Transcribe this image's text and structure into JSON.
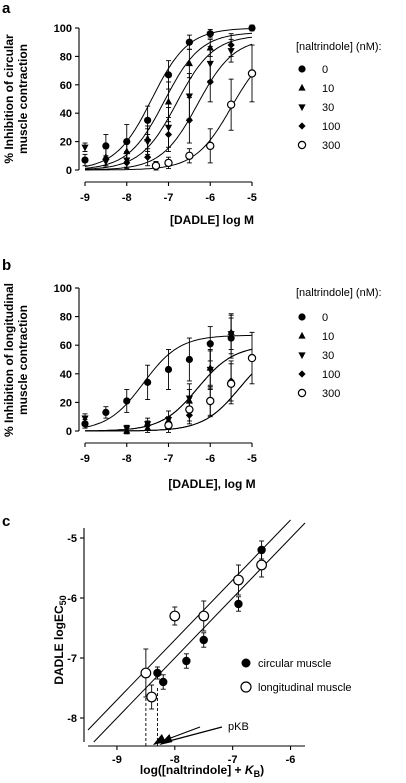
{
  "chart_data": [
    {
      "type": "scatter",
      "panel": "a",
      "xlabel": "[DADLE] log M",
      "ylabel": [
        "% Inhibition of circular",
        "muscle contraction"
      ],
      "xlim": [
        -9,
        -5
      ],
      "ylim": [
        0,
        100
      ],
      "xticks": [
        -9,
        -8,
        -7,
        -6,
        -5
      ],
      "yticks": [
        0,
        20,
        40,
        60,
        80,
        100
      ],
      "legend_title": "[naltrindole] (nM):",
      "legend_placement": "right",
      "series": [
        {
          "name": "0",
          "marker": "circle-filled",
          "x": [
            -9,
            -8.5,
            -8,
            -7.5,
            -7,
            -6.5,
            -6,
            -5
          ],
          "y": [
            7,
            17,
            20,
            35,
            67,
            90,
            96,
            100
          ],
          "err": [
            4,
            8,
            12,
            10,
            10,
            5,
            3,
            2
          ],
          "fit": {
            "logEC50": -7.4,
            "top": 100,
            "bottom": 0
          }
        },
        {
          "name": "10",
          "marker": "triangle-up",
          "x": [
            -8.5,
            -8,
            -7.5,
            -7,
            -6.5,
            -6
          ],
          "y": [
            9,
            13,
            22,
            48,
            75,
            86
          ],
          "err": [
            6,
            7,
            9,
            14,
            10,
            6
          ],
          "fit": {
            "logEC50": -7.1,
            "top": 97,
            "bottom": 0
          }
        },
        {
          "name": "30",
          "marker": "triangle-down",
          "x": [
            -9,
            -8.5,
            -8,
            -7.5,
            -7,
            -6.5,
            -6,
            -5.5
          ],
          "y": [
            16,
            6,
            7,
            20,
            30,
            52,
            75,
            84
          ],
          "err": [
            3,
            4,
            6,
            9,
            14,
            16,
            12,
            8
          ],
          "fit": {
            "logEC50": -6.8,
            "top": 95,
            "bottom": 0
          }
        },
        {
          "name": "100",
          "marker": "diamond",
          "x": [
            -8,
            -7.5,
            -7,
            -6.5,
            -6,
            -5.5
          ],
          "y": [
            5,
            9,
            25,
            35,
            62,
            88
          ],
          "err": [
            3,
            6,
            12,
            16,
            14,
            8
          ],
          "fit": {
            "logEC50": -6.3,
            "top": 93,
            "bottom": 0
          }
        },
        {
          "name": "300",
          "marker": "circle-open",
          "x": [
            -7.3,
            -7,
            -6.5,
            -6,
            -5.5,
            -5
          ],
          "y": [
            3,
            5,
            10,
            17,
            46,
            68
          ],
          "err": [
            3,
            4,
            5,
            12,
            18,
            20
          ],
          "fit": {
            "logEC50": -5.5,
            "top": 88,
            "bottom": 0
          }
        }
      ]
    },
    {
      "type": "scatter",
      "panel": "b",
      "xlabel": "[DADLE], log M",
      "ylabel": [
        "% Inhibition of longitudinal",
        "muscle contraction"
      ],
      "xlim": [
        -9,
        -5
      ],
      "ylim": [
        0,
        100
      ],
      "xticks": [
        -9,
        -8,
        -7,
        -6,
        -5
      ],
      "yticks": [
        0,
        20,
        40,
        60,
        80,
        100
      ],
      "legend_title": "[naltrindole] (nM):",
      "legend_placement": "right",
      "series": [
        {
          "name": "0",
          "marker": "circle-filled",
          "x": [
            -9,
            -8.5,
            -8,
            -7.5,
            -7,
            -6.5,
            -6,
            -5.5
          ],
          "y": [
            5,
            13,
            21,
            34,
            43,
            50,
            61,
            65
          ],
          "err": [
            3,
            4,
            8,
            12,
            14,
            15,
            12,
            14
          ],
          "fit": {
            "logEC50": -7.6,
            "top": 67,
            "bottom": 0
          }
        },
        {
          "name": "10",
          "marker": "triangle-up",
          "x": [
            -8,
            -7.5,
            -7,
            -6.5,
            -6,
            -5.5
          ],
          "y": [
            0,
            2,
            3,
            21,
            44,
            69
          ],
          "err": [
            2,
            3,
            4,
            8,
            12,
            12
          ],
          "fit": {
            "logEC50": -6.3,
            "top": 60,
            "bottom": 0
          }
        },
        {
          "name": "30",
          "marker": "triangle-down",
          "x": [
            -9,
            -8,
            -7.5,
            -7,
            -6.5,
            -6,
            -5.5
          ],
          "y": [
            9,
            2,
            5,
            8,
            23,
            43,
            68
          ],
          "err": [
            3,
            2,
            4,
            6,
            10,
            14,
            14
          ],
          "fit": {
            "logEC50": -6.3,
            "top": 60,
            "bottom": 0
          }
        },
        {
          "name": "100",
          "marker": "diamond",
          "x": [
            -7.5,
            -7,
            -6.5,
            -6,
            -5.5
          ],
          "y": [
            4,
            6,
            11,
            20,
            35
          ],
          "err": [
            3,
            4,
            6,
            10,
            14
          ],
          "fit": {
            "logEC50": -5.3,
            "top": 60,
            "bottom": 0
          }
        },
        {
          "name": "300",
          "marker": "circle-open",
          "x": [
            -7,
            -6.5,
            -6,
            -5.5,
            -5
          ],
          "y": [
            4,
            15,
            21,
            33,
            51
          ],
          "err": [
            3,
            8,
            10,
            14,
            18
          ],
          "fit": {
            "logEC50": -5.3,
            "top": 60,
            "bottom": 0
          }
        }
      ]
    },
    {
      "type": "scatter",
      "panel": "c",
      "xlabel": "log([naltrindole] + K_B)",
      "ylabel": "DADLE logEC_50",
      "xlim": [
        -9.5,
        -5.75
      ],
      "ylim": [
        -8.4,
        -4.7
      ],
      "xticks": [
        -9,
        -8,
        -7,
        -6
      ],
      "yticks": [
        -8,
        -7,
        -6,
        -5
      ],
      "legend_placement": "right",
      "series": [
        {
          "name": "circular muscle",
          "marker": "circle-filled",
          "x": [
            -8.3,
            -8.2,
            -7.8,
            -7.5,
            -6.9,
            -6.5
          ],
          "y": [
            -7.25,
            -7.4,
            -7.05,
            -6.7,
            -6.1,
            -5.2
          ],
          "err": [
            0.1,
            0.12,
            0.12,
            0.12,
            0.12,
            0.15
          ],
          "fit": {
            "slope": 1,
            "intercept": 1.3
          }
        },
        {
          "name": "longitudinal muscle",
          "marker": "circle-open",
          "x": [
            -8.5,
            -8.4,
            -8.0,
            -7.5,
            -6.9,
            -6.5
          ],
          "y": [
            -7.25,
            -7.65,
            -6.3,
            -6.3,
            -5.7,
            -5.45
          ],
          "err": [
            0.4,
            0.2,
            0.15,
            0.25,
            0.25,
            0.2
          ],
          "fit": {
            "slope": 1,
            "intercept": 1.0
          }
        }
      ],
      "pKB_label": "pKB",
      "pKB_values": [
        -8.5,
        -8.3
      ]
    }
  ]
}
